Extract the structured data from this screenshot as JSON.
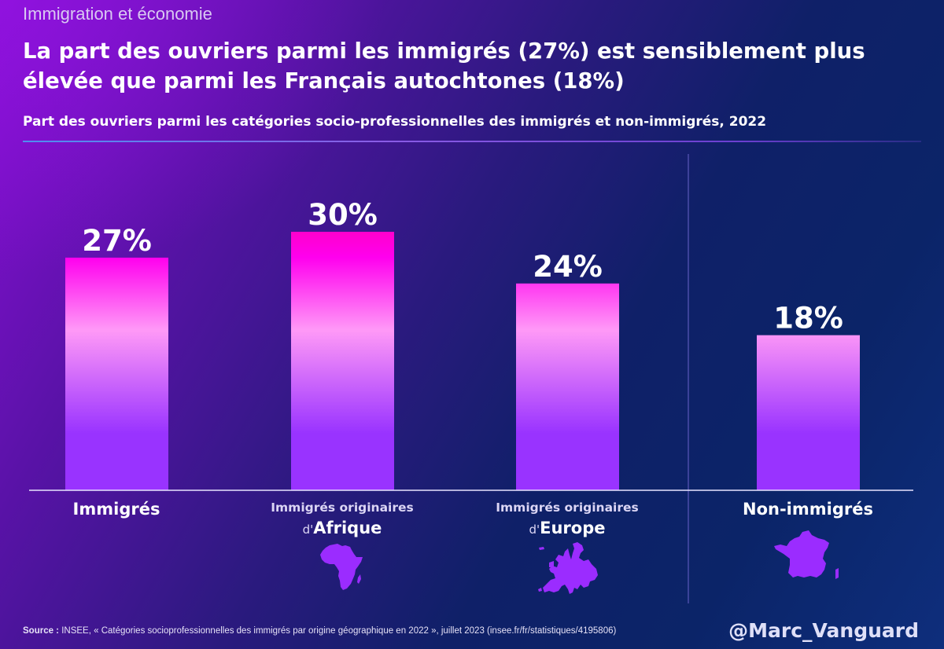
{
  "header": {
    "kicker": "Immigration et économie",
    "title": "La part des ouvriers parmi les immigrés (27%) est sensiblement plus élevée que parmi les Français autochtones (18%)",
    "subtitle": "Part des ouvriers parmi les catégories socio-professionnelles des immigrés et non-immigrés, 2022"
  },
  "colors": {
    "bar_top": "#ff00cc",
    "bar_mid": "#ff99f7",
    "bar_bottom": "#9933ff",
    "map_fill": "#9b2cff",
    "baseline": "#e8e4ff",
    "divider": "#5a58b8"
  },
  "chart_data": {
    "type": "bar",
    "title": "Part des ouvriers parmi les catégories socio-professionnelles des immigrés et non-immigrés, 2022",
    "xlabel": "",
    "ylabel": "",
    "unit": "%",
    "ylim": [
      0,
      30
    ],
    "grid": false,
    "categories": [
      "Immigrés",
      "Immigrés originaires d'Afrique",
      "Immigrés originaires d'Europe",
      "Non-immigrés"
    ],
    "values": [
      27,
      30,
      24,
      18
    ],
    "data_labels": [
      "27%",
      "30%",
      "24%",
      "18%"
    ],
    "separator_before_category": "Non-immigrés"
  },
  "categories": [
    {
      "main": "Immigrés"
    },
    {
      "line1": "Immigrés originaires",
      "prefix": "d'",
      "region": "Afrique",
      "icon": "africa-map-icon"
    },
    {
      "line1": "Immigrés originaires",
      "prefix": "d'",
      "region": "Europe",
      "icon": "europe-map-icon"
    },
    {
      "main": "Non-immigrés",
      "icon": "france-map-icon"
    }
  ],
  "footer": {
    "source_label": "Source :",
    "source_text": "INSEE, « Catégories socioprofessionnelles des immigrés par origine géographique en 2022 », juillet 2023 (insee.fr/fr/statistiques/4195806)",
    "handle": "@Marc_Vanguard"
  }
}
